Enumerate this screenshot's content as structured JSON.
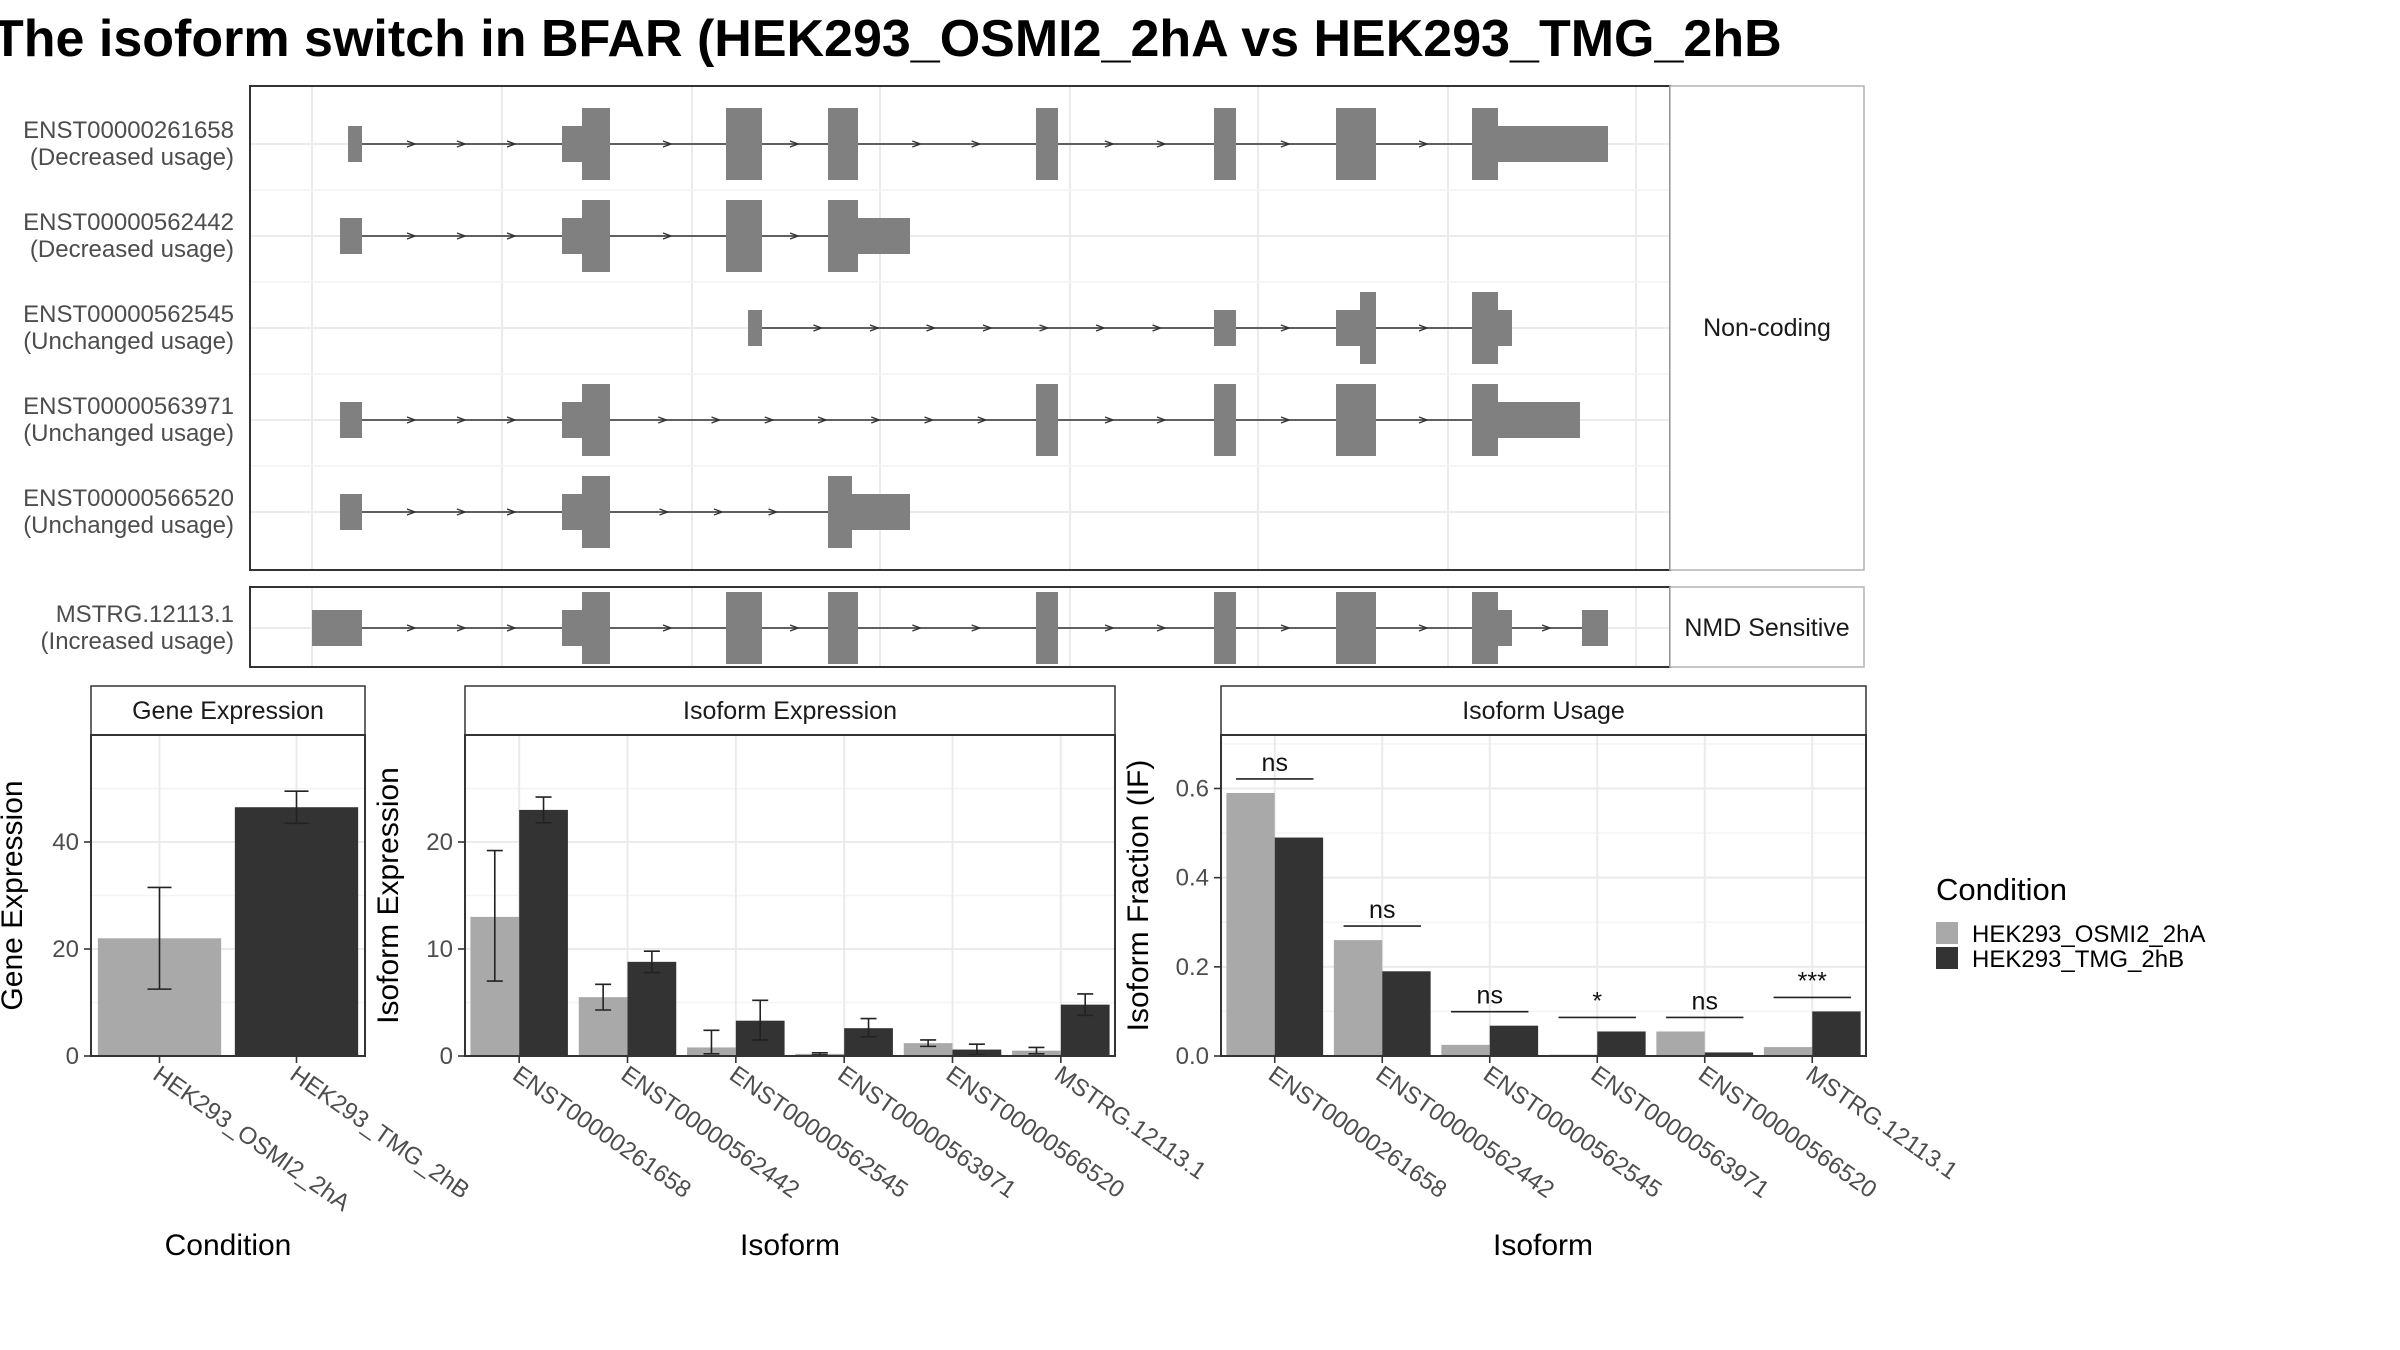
{
  "title": "The isoform switch in BFAR (HEK293_OSMI2_2hA vs HEK293_TMG_2hB",
  "colors": {
    "cond1": "#a9a9a9",
    "cond2": "#333333",
    "exon": "#808080",
    "intron": "#333333",
    "grid": "#ebebeb",
    "panel_border": "#333333",
    "strip_fill": "#ffffff"
  },
  "structure": {
    "strips": {
      "noncoding": "Non-coding",
      "nmd": "NMD Sensitive"
    },
    "isoforms": [
      {
        "name": "ENST00000261658",
        "usage": "(Decreased usage)",
        "group": "noncoding"
      },
      {
        "name": "ENST00000562442",
        "usage": "(Decreased usage)",
        "group": "noncoding"
      },
      {
        "name": "ENST00000562545",
        "usage": "(Unchanged usage)",
        "group": "noncoding"
      },
      {
        "name": "ENST00000563971",
        "usage": "(Unchanged usage)",
        "group": "noncoding"
      },
      {
        "name": "ENST00000566520",
        "usage": "(Unchanged usage)",
        "group": "noncoding"
      },
      {
        "name": "MSTRG.12113.1",
        "usage": "(Increased usage)",
        "group": "nmd"
      }
    ]
  },
  "legend": {
    "title": "Condition",
    "items": [
      "HEK293_OSMI2_2hA",
      "HEK293_TMG_2hB"
    ]
  },
  "chart_data": [
    {
      "type": "bar",
      "strip": "Gene Expression",
      "xlabel": "Condition",
      "ylabel": "Gene Expression",
      "ylim": [
        0,
        60
      ],
      "yticks": [
        0,
        20,
        40
      ],
      "categories": [
        "HEK293_OSMI2_2hA",
        "HEK293_TMG_2hB"
      ],
      "values": [
        22,
        46.5
      ],
      "err_low": [
        12.5,
        43.5
      ],
      "err_high": [
        31.5,
        49.5
      ]
    },
    {
      "type": "bar",
      "strip": "Isoform Expression",
      "xlabel": "Isoform",
      "ylabel": "Isoform Expression",
      "ylim": [
        0,
        30
      ],
      "yticks": [
        0,
        10,
        20
      ],
      "categories": [
        "ENST00000261658",
        "ENST00000562442",
        "ENST00000562545",
        "ENST00000563971",
        "ENST00000566520",
        "MSTRG.12113.1"
      ],
      "series": [
        {
          "name": "HEK293_OSMI2_2hA",
          "values": [
            13,
            5.5,
            0.8,
            0.2,
            1.2,
            0.5
          ],
          "err_low": [
            7,
            4.3,
            0.2,
            0.1,
            0.9,
            0.2
          ],
          "err_high": [
            19.2,
            6.7,
            2.4,
            0.3,
            1.5,
            0.8
          ]
        },
        {
          "name": "HEK293_TMG_2hB",
          "values": [
            23,
            8.8,
            3.3,
            2.6,
            0.6,
            4.8
          ],
          "err_low": [
            21.8,
            7.8,
            1.5,
            1.8,
            0.1,
            3.8
          ],
          "err_high": [
            24.2,
            9.8,
            5.2,
            3.5,
            1.1,
            5.8
          ]
        }
      ]
    },
    {
      "type": "bar",
      "strip": "Isoform Usage",
      "xlabel": "Isoform",
      "ylabel": "Isoform Fraction (IF)",
      "ylim": [
        0,
        0.72
      ],
      "yticks": [
        0.0,
        0.2,
        0.4,
        0.6
      ],
      "ytick_labels": [
        "0.0",
        "0.2",
        "0.4",
        "0.6"
      ],
      "categories": [
        "ENST00000261658",
        "ENST00000562442",
        "ENST00000562545",
        "ENST00000563971",
        "ENST00000566520",
        "MSTRG.12113.1"
      ],
      "series": [
        {
          "name": "HEK293_OSMI2_2hA",
          "values": [
            0.59,
            0.26,
            0.025,
            0.003,
            0.055,
            0.02
          ]
        },
        {
          "name": "HEK293_TMG_2hB",
          "values": [
            0.49,
            0.19,
            0.068,
            0.055,
            0.008,
            0.1
          ]
        }
      ],
      "significance": [
        "ns",
        "ns",
        "ns",
        "*",
        "ns",
        "***"
      ]
    }
  ]
}
